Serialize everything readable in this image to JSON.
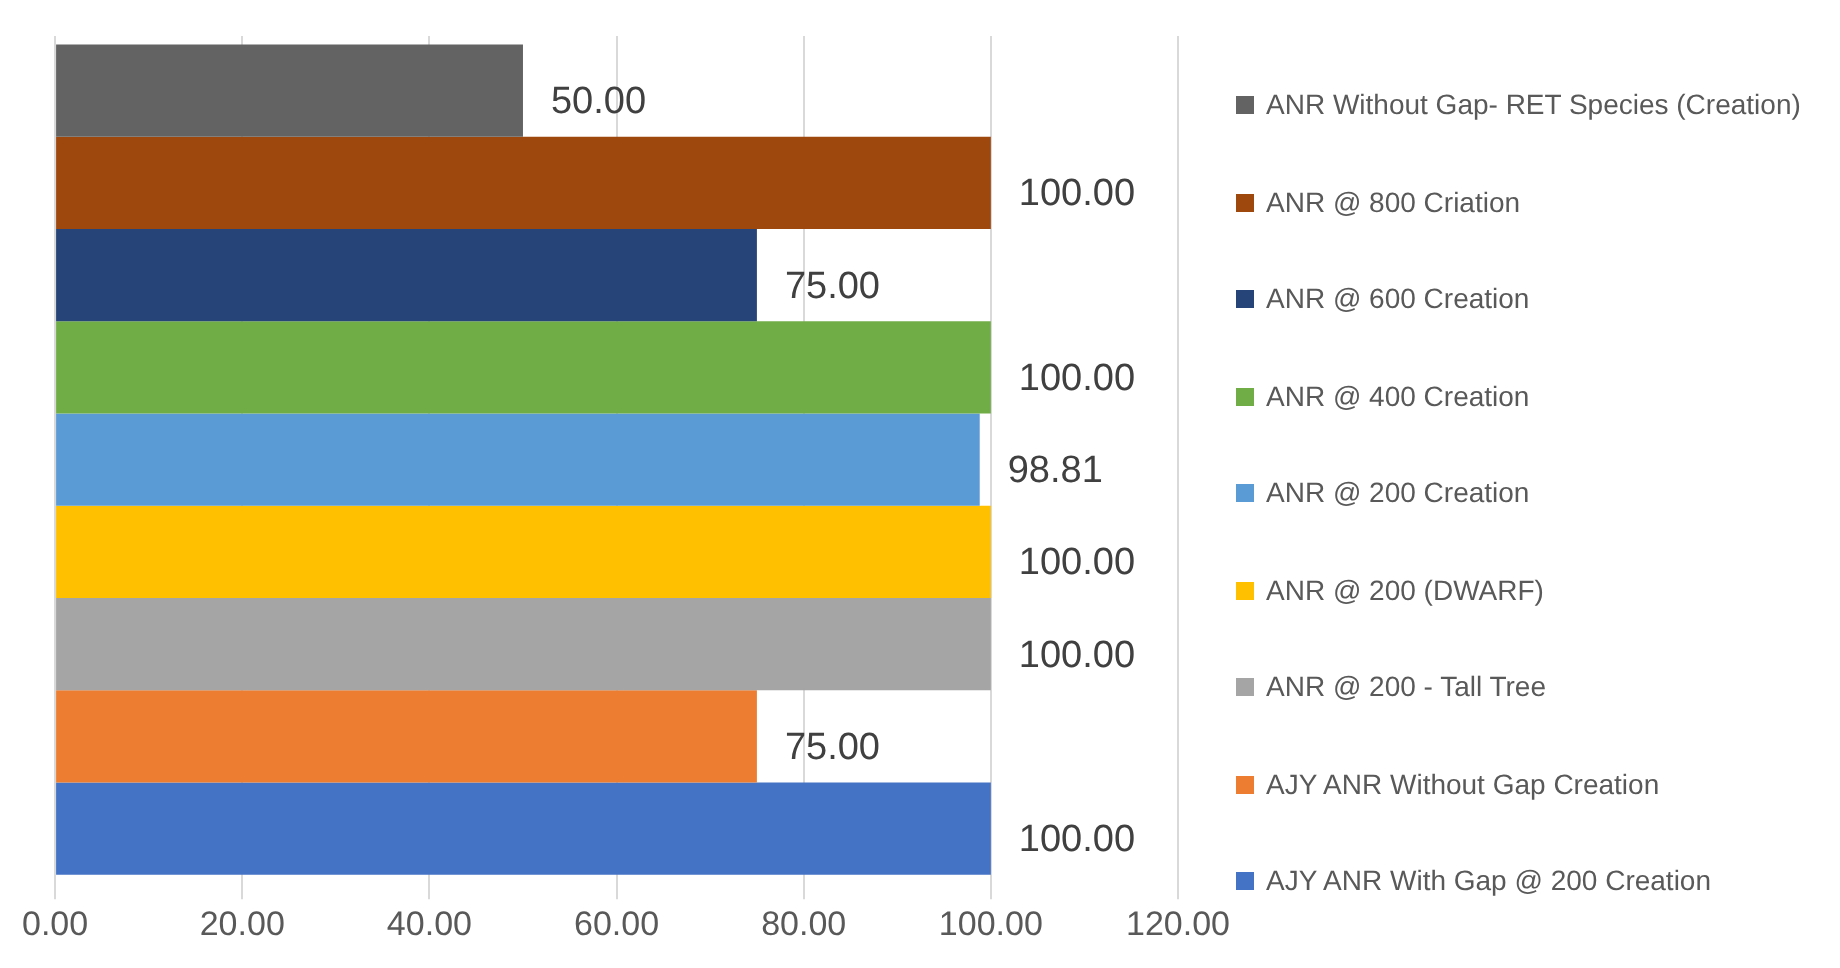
{
  "chart_data": {
    "type": "bar",
    "orientation": "horizontal",
    "categories": [
      null
    ],
    "series": [
      {
        "name": "ANR Without Gap- RET Species (Creation)",
        "color": "#636363",
        "values": [
          50
        ],
        "value_labels": [
          "50.00"
        ]
      },
      {
        "name": "ANR @ 800 Criation",
        "color": "#9e480e",
        "values": [
          100
        ],
        "value_labels": [
          "100.00"
        ]
      },
      {
        "name": "ANR @ 600 Creation",
        "color": "#264478",
        "values": [
          75
        ],
        "value_labels": [
          "75.00"
        ]
      },
      {
        "name": "ANR @ 400 Creation",
        "color": "#70ad47",
        "values": [
          100
        ],
        "value_labels": [
          "100.00"
        ]
      },
      {
        "name": "ANR @ 200 Creation",
        "color": "#5b9bd5",
        "values": [
          98.81
        ],
        "value_labels": [
          "98.81"
        ]
      },
      {
        "name": "ANR @ 200 (DWARF)",
        "color": "#ffc000",
        "values": [
          100
        ],
        "value_labels": [
          "100.00"
        ]
      },
      {
        "name": "ANR @ 200 - Tall Tree",
        "color": "#a5a5a5",
        "values": [
          100
        ],
        "value_labels": [
          "100.00"
        ]
      },
      {
        "name": "AJY ANR Without Gap Creation",
        "color": "#ed7d31",
        "values": [
          75
        ],
        "value_labels": [
          "75.00"
        ]
      },
      {
        "name": "AJY ANR With Gap @ 200 Creation",
        "color": "#4472c4",
        "values": [
          100
        ],
        "value_labels": [
          "100.00"
        ]
      }
    ],
    "xlim": [
      0,
      120
    ],
    "xticks": [
      {
        "value": 0,
        "label": "0.00"
      },
      {
        "value": 20,
        "label": "20.00"
      },
      {
        "value": 40,
        "label": "40.00"
      },
      {
        "value": 60,
        "label": "60.00"
      },
      {
        "value": 80,
        "label": "80.00"
      },
      {
        "value": 100,
        "label": "100.00"
      },
      {
        "value": 120,
        "label": "120.00"
      }
    ],
    "grid": "x",
    "legend": "right",
    "tick_labels": "x"
  }
}
